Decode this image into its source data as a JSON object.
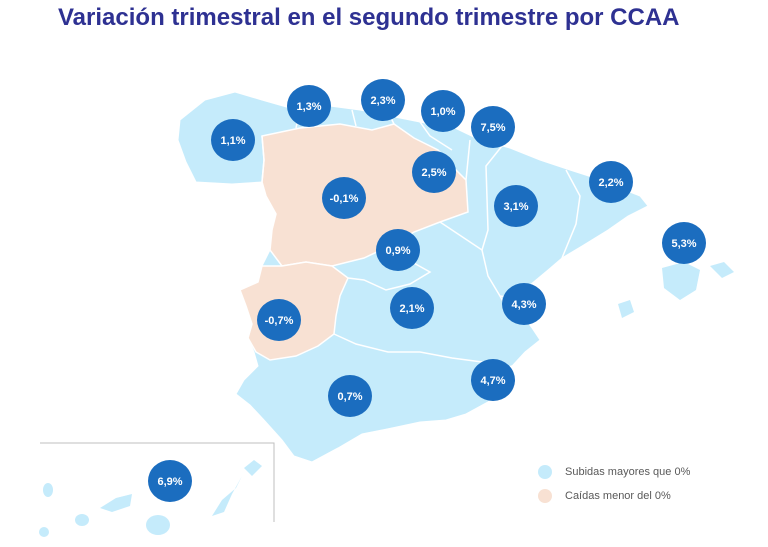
{
  "title": "Variación trimestral en el segundo trimestre por CCAA",
  "colors": {
    "rise": "#c5ebfb",
    "fall": "#f8e1d3",
    "bubble": "#1b6dbf",
    "border": "#ffffff",
    "title": "#2e3192"
  },
  "regions": [
    {
      "label": "1,1%",
      "value": 1.1
    },
    {
      "label": "1,3%",
      "value": 1.3
    },
    {
      "label": "2,3%",
      "value": 2.3
    },
    {
      "label": "1,0%",
      "value": 1.0
    },
    {
      "label": "7,5%",
      "value": 7.5
    },
    {
      "label": "2,5%",
      "value": 2.5
    },
    {
      "label": "2,2%",
      "value": 2.2
    },
    {
      "label": "-0,1%",
      "value": -0.1
    },
    {
      "label": "3,1%",
      "value": 3.1
    },
    {
      "label": "5,3%",
      "value": 5.3
    },
    {
      "label": "0,9%",
      "value": 0.9
    },
    {
      "label": "4,3%",
      "value": 4.3
    },
    {
      "label": "-0,7%",
      "value": -0.7
    },
    {
      "label": "2,1%",
      "value": 2.1
    },
    {
      "label": "4,7%",
      "value": 4.7
    },
    {
      "label": "0,7%",
      "value": 0.7
    },
    {
      "label": "6,9%",
      "value": 6.9
    }
  ],
  "legend": {
    "rise_label": "Subidas mayores que 0%",
    "fall_label": "Caídas menor del 0%"
  }
}
